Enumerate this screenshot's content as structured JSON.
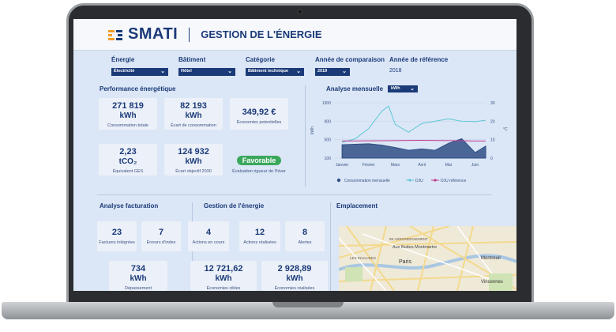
{
  "header": {
    "logo_text": "SMATI",
    "page_title": "GESTION DE L'ÉNERGIE"
  },
  "filters": [
    {
      "label": "Énergie",
      "value": "Électricité",
      "type": "select"
    },
    {
      "label": "Bâtiment",
      "value": "Hôtel",
      "type": "select"
    },
    {
      "label": "Catégorie",
      "value": "Bâtiment technique",
      "type": "select"
    },
    {
      "label": "Année de comparaison",
      "value": "2019",
      "type": "select"
    },
    {
      "label": "Année de référence",
      "value": "2018",
      "type": "text"
    }
  ],
  "performance": {
    "title": "Performance énergétique",
    "cards": [
      {
        "value": "271 819",
        "unit": "kWh",
        "label": "Consommation totale"
      },
      {
        "value": "82 193",
        "unit": "kWh",
        "label": "Écart de consommation"
      },
      {
        "value": "349,92 €",
        "unit": "",
        "label": "Économies potentielles"
      },
      {
        "value": "2,23",
        "unit": "tCO₂",
        "label": "Équivalent GES"
      },
      {
        "value": "124 932",
        "unit": "kWh",
        "label": "Écart objectif 2030"
      },
      {
        "value": "Favorable",
        "unit": "",
        "label": "Évaluation rigueur de l'hiver"
      }
    ]
  },
  "monthly": {
    "title": "Analyse mensuelle",
    "unit_select": "kWh"
  },
  "chart_data": {
    "type": "area",
    "title": "Analyse mensuelle",
    "ylabel": "kWh",
    "y2label": "°C",
    "x": [
      "Janvier",
      "Février",
      "Mars",
      "Avril",
      "Mai",
      "Juin"
    ],
    "ylim": [
      100,
      1300
    ],
    "yticks": [
      100,
      500,
      900,
      1300
    ],
    "y2lim": [
      0,
      30
    ],
    "y2ticks": [
      0,
      10,
      20,
      30
    ],
    "series": [
      {
        "name": "Consommation mensuelle",
        "axis": "left",
        "color": "#2f4f86",
        "points": [
          [
            0,
            390
          ],
          [
            0.5,
            400
          ],
          [
            1,
            410
          ],
          [
            1.5,
            380
          ],
          [
            2,
            330
          ],
          [
            2.5,
            270
          ],
          [
            3,
            300
          ],
          [
            3.5,
            270
          ],
          [
            4,
            420
          ],
          [
            4.5,
            520
          ],
          [
            5,
            220
          ],
          [
            5.4,
            360
          ]
        ]
      },
      {
        "name": "DJU",
        "axis": "left",
        "color": "#5ec8d6",
        "points": [
          [
            0,
            440
          ],
          [
            0.5,
            520
          ],
          [
            1,
            740
          ],
          [
            1.5,
            1120
          ],
          [
            1.75,
            1230
          ],
          [
            2,
            830
          ],
          [
            2.5,
            660
          ],
          [
            3,
            850
          ],
          [
            3.5,
            900
          ],
          [
            4,
            950
          ],
          [
            4.5,
            900
          ],
          [
            5,
            890
          ],
          [
            5.4,
            920
          ]
        ]
      },
      {
        "name": "DJU référence",
        "axis": "left",
        "color": "#c2398f",
        "points": [
          [
            0,
            470
          ],
          [
            1,
            475
          ],
          [
            2,
            480
          ],
          [
            3,
            485
          ],
          [
            4,
            480
          ],
          [
            5,
            470
          ],
          [
            5.4,
            470
          ]
        ]
      }
    ],
    "legend": "bottom"
  },
  "billing": {
    "title": "Analyse facturation",
    "cards": [
      {
        "value": "23",
        "unit": "",
        "label": "Factures intégrées"
      },
      {
        "value": "7",
        "unit": "",
        "label": "Erreurs d'index"
      },
      {
        "value": "734",
        "unit": "kWh",
        "label": "Dépassement"
      }
    ]
  },
  "management": {
    "title": "Gestion de l'énergie",
    "cards": [
      {
        "value": "4",
        "unit": "",
        "label": "Actions en cours"
      },
      {
        "value": "12",
        "unit": "",
        "label": "Actions réalisées"
      },
      {
        "value": "8",
        "unit": "",
        "label": "Alertes"
      },
      {
        "value": "12 721,62",
        "unit": "kWh",
        "label": "Économies cibles"
      },
      {
        "value": "2 928,89",
        "unit": "kWh",
        "label": "Économies réalisées"
      }
    ]
  },
  "location": {
    "title": "Emplacement",
    "labels": [
      "8E ARRONDISSEMENT",
      "Aux Buttes Montmartre",
      "LES INVALIDES",
      "Paris",
      "Montreuil",
      "Vincennes"
    ]
  }
}
